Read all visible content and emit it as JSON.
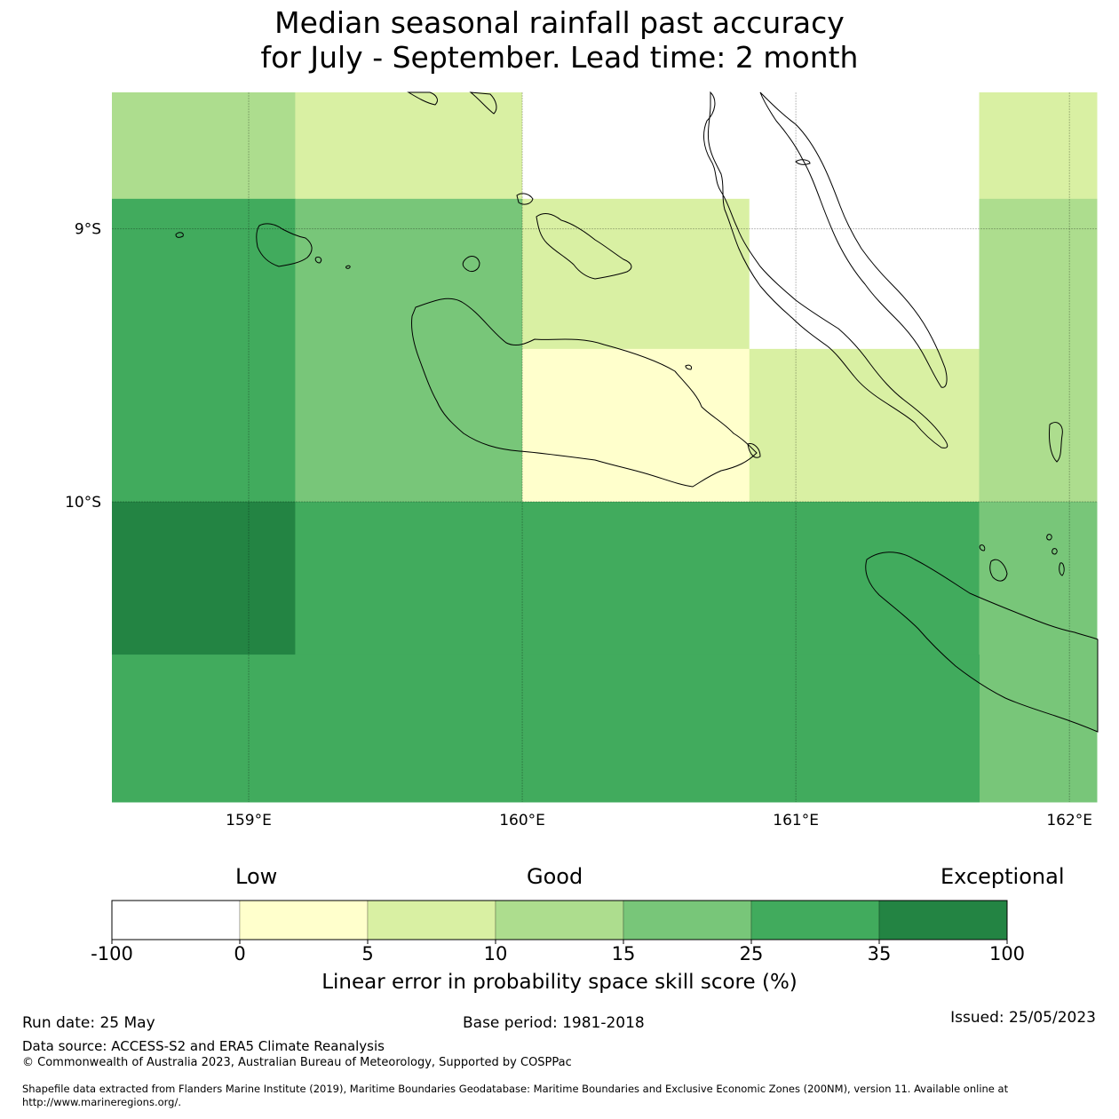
{
  "title": {
    "line1": "Median seasonal rainfall past accuracy",
    "line2": "for July - September. Lead time: 2 month"
  },
  "map": {
    "lon_range": [
      158.5,
      162.1
    ],
    "lat_range": [
      -11.1,
      -8.5
    ],
    "lon_ticks": [
      {
        "value": 159,
        "label": "159°E"
      },
      {
        "value": 160,
        "label": "160°E"
      },
      {
        "value": 161,
        "label": "161°E"
      },
      {
        "value": 162,
        "label": "162°E"
      }
    ],
    "lat_ticks": [
      {
        "value": -9,
        "label": "9°S"
      },
      {
        "value": -10,
        "label": "10°S"
      }
    ],
    "grid_cells": [
      {
        "lon": [
          158.5,
          159.17
        ],
        "lat": [
          -8.89,
          -8.5
        ],
        "class": 3
      },
      {
        "lon": [
          159.17,
          160.0
        ],
        "lat": [
          -8.89,
          -8.5
        ],
        "class": 2
      },
      {
        "lon": [
          160.0,
          161.67
        ],
        "lat": [
          -8.89,
          -8.5
        ],
        "class": 0
      },
      {
        "lon": [
          161.67,
          162.1
        ],
        "lat": [
          -8.89,
          -8.5
        ],
        "class": 2
      },
      {
        "lon": [
          158.5,
          159.17
        ],
        "lat": [
          -10.0,
          -8.89
        ],
        "class": 5
      },
      {
        "lon": [
          159.17,
          160.0
        ],
        "lat": [
          -10.0,
          -8.89
        ],
        "class": 4
      },
      {
        "lon": [
          160.0,
          160.83
        ],
        "lat": [
          -9.44,
          -8.89
        ],
        "class": 2
      },
      {
        "lon": [
          160.83,
          161.67
        ],
        "lat": [
          -9.44,
          -8.89
        ],
        "class": 0
      },
      {
        "lon": [
          160.0,
          160.83
        ],
        "lat": [
          -10.0,
          -9.44
        ],
        "class": 1
      },
      {
        "lon": [
          160.83,
          161.67
        ],
        "lat": [
          -10.0,
          -9.44
        ],
        "class": 2
      },
      {
        "lon": [
          161.67,
          162.1
        ],
        "lat": [
          -10.0,
          -8.89
        ],
        "class": 3
      },
      {
        "lon": [
          158.5,
          159.17
        ],
        "lat": [
          -10.56,
          -10.0
        ],
        "class": 6
      },
      {
        "lon": [
          159.17,
          161.67
        ],
        "lat": [
          -10.56,
          -10.0
        ],
        "class": 5
      },
      {
        "lon": [
          161.67,
          162.1
        ],
        "lat": [
          -11.1,
          -10.0
        ],
        "class": 4
      },
      {
        "lon": [
          158.5,
          161.67
        ],
        "lat": [
          -11.1,
          -10.56
        ],
        "class": 5
      }
    ]
  },
  "colorbar": {
    "colors": [
      "#ffffff",
      "#ffffcc",
      "#d9f0a3",
      "#addd8e",
      "#78c679",
      "#41ab5d",
      "#238443"
    ],
    "tick_labels": [
      "-100",
      "0",
      "5",
      "10",
      "15",
      "25",
      "35",
      "100"
    ],
    "category_low": "Low",
    "category_good": "Good",
    "category_exceptional": "Exceptional",
    "label": "Linear error in probability space skill score (%)"
  },
  "footer": {
    "run_date": "Run date: 25 May",
    "base_period": "Base period: 1981-2018",
    "issued": "Issued: 25/05/2023",
    "data_source": "Data source: ACCESS-S2 and ERA5 Climate Reanalysis",
    "copyright": "© Commonwealth of Australia 2023, Australian Bureau of Meteorology, Supported by COSPPac",
    "shapefile_line1": "Shapefile data extracted from Flanders Marine Institute (2019), Maritime Boundaries Geodatabase: Maritime Boundaries and Exclusive Economic Zones (200NM), version 11. Available online at",
    "shapefile_line2": "http://www.marineregions.org/."
  }
}
